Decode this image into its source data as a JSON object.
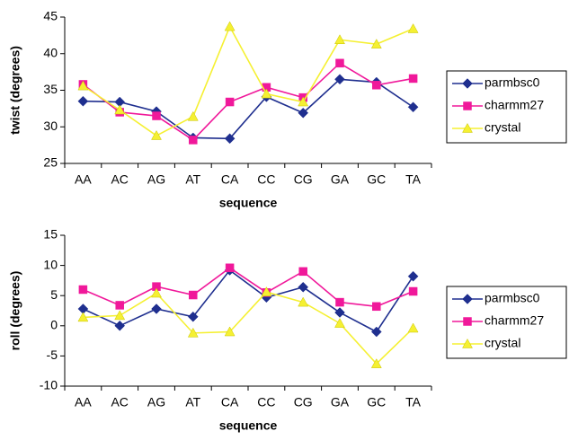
{
  "chart_data": [
    {
      "type": "line",
      "xlabel": "sequence",
      "ylabel": "twist (degrees)",
      "categories": [
        "AA",
        "AC",
        "AG",
        "AT",
        "CA",
        "CC",
        "CG",
        "GA",
        "GC",
        "TA"
      ],
      "ylim": [
        25,
        45
      ],
      "yticks": [
        25,
        30,
        35,
        40,
        45
      ],
      "grid": false,
      "legend": "right",
      "series": [
        {
          "name": "parmbsc0",
          "color": "#1f2f8f",
          "marker": "diamond",
          "values": [
            33.5,
            33.4,
            32.1,
            28.5,
            28.4,
            34.1,
            31.9,
            36.5,
            36.1,
            32.7
          ]
        },
        {
          "name": "charmm27",
          "color": "#f0189a",
          "marker": "square",
          "values": [
            35.8,
            32.0,
            31.5,
            28.2,
            33.4,
            35.4,
            34.0,
            38.7,
            35.7,
            36.6
          ]
        },
        {
          "name": "crystal",
          "color": "#f5f032",
          "marker": "triangle",
          "values": [
            35.6,
            32.3,
            28.8,
            31.4,
            43.7,
            34.5,
            33.4,
            41.9,
            41.3,
            43.4
          ]
        }
      ]
    },
    {
      "type": "line",
      "xlabel": "sequence",
      "ylabel": "roll (degrees)",
      "categories": [
        "AA",
        "AC",
        "AG",
        "AT",
        "CA",
        "CC",
        "CG",
        "GA",
        "GC",
        "TA"
      ],
      "ylim": [
        -10,
        15
      ],
      "yticks": [
        -10,
        -5,
        0,
        5,
        10,
        15
      ],
      "grid": false,
      "legend": "right",
      "series": [
        {
          "name": "parmbsc0",
          "color": "#1f2f8f",
          "marker": "diamond",
          "values": [
            2.8,
            0,
            2.8,
            1.5,
            9.2,
            4.7,
            6.4,
            2.2,
            -1.0,
            8.2
          ]
        },
        {
          "name": "charmm27",
          "color": "#f0189a",
          "marker": "square",
          "values": [
            6.0,
            3.4,
            6.5,
            5.1,
            9.6,
            5.5,
            9.0,
            3.9,
            3.2,
            5.7
          ]
        },
        {
          "name": "crystal",
          "color": "#f5f032",
          "marker": "triangle",
          "values": [
            1.4,
            1.7,
            5.4,
            -1.2,
            -1.0,
            5.6,
            3.9,
            0.4,
            -6.3,
            -0.4
          ]
        }
      ]
    }
  ]
}
